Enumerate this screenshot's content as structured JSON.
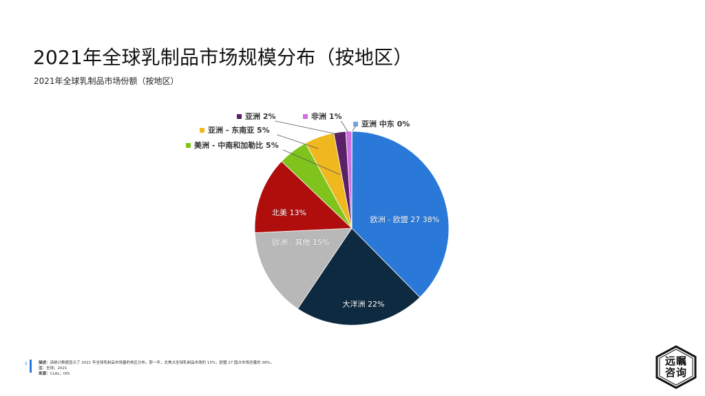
{
  "title": "2021年全球乳制品市场规模分布（按地区）",
  "subtitle": "2021年全球乳制品市场份额（按地区）",
  "footer": {
    "page_number": "5",
    "description_label": "描述：",
    "description_text": "该统计数据显示了 2021 年全球乳制品市场量的地区分布。那一年，北美占全球乳制品市场的 13%，欧盟 27 国占市场总量的 38%。",
    "note_label": "注：",
    "note_text": "全球；2021",
    "source_label": "来源：",
    "source_text": "CLAL；IHS"
  },
  "logo": {
    "line1": "远瞩",
    "line2": "咨询"
  },
  "chart_data": {
    "type": "pie",
    "title": "",
    "slices": [
      {
        "label": "欧洲 - 欧盟 27",
        "value": 38,
        "display": "欧洲 - 欧盟 27 38%",
        "color": "#2a78d8",
        "label_inside": true,
        "text_color": "#ffffff"
      },
      {
        "label": "大洋洲",
        "value": 22,
        "display": "大洋洲 22%",
        "color": "#0e2a40",
        "label_inside": true,
        "text_color": "#ffffff"
      },
      {
        "label": "欧洲 - 其他",
        "value": 15,
        "display": "欧洲 - 其他 15%",
        "color": "#b8b8b8",
        "label_inside": true,
        "text_color": "#ffffff"
      },
      {
        "label": "北美",
        "value": 13,
        "display": "北美 13%",
        "color": "#b00d0d",
        "label_inside": true,
        "text_color": "#ffffff"
      },
      {
        "label": "美洲 - 中南和加勒比",
        "value": 5,
        "display": "美洲 - 中南和加勒比 5%",
        "color": "#7fc31c",
        "label_inside": false,
        "text_color": "#333333"
      },
      {
        "label": "亚洲 - 东南亚",
        "value": 5,
        "display": "亚洲 - 东南亚 5%",
        "color": "#f0b81f",
        "label_inside": false,
        "text_color": "#333333"
      },
      {
        "label": "亚洲",
        "value": 2,
        "display": "亚洲 2%",
        "color": "#5b2168",
        "label_inside": false,
        "text_color": "#333333"
      },
      {
        "label": "非洲",
        "value": 1,
        "display": "非洲 1%",
        "color": "#cf6fe0",
        "label_inside": false,
        "text_color": "#333333"
      },
      {
        "label": "亚洲 中东",
        "value": 0,
        "display": "亚洲 中东 0%",
        "color": "#6fa8e0",
        "label_inside": false,
        "text_color": "#333333"
      }
    ]
  }
}
